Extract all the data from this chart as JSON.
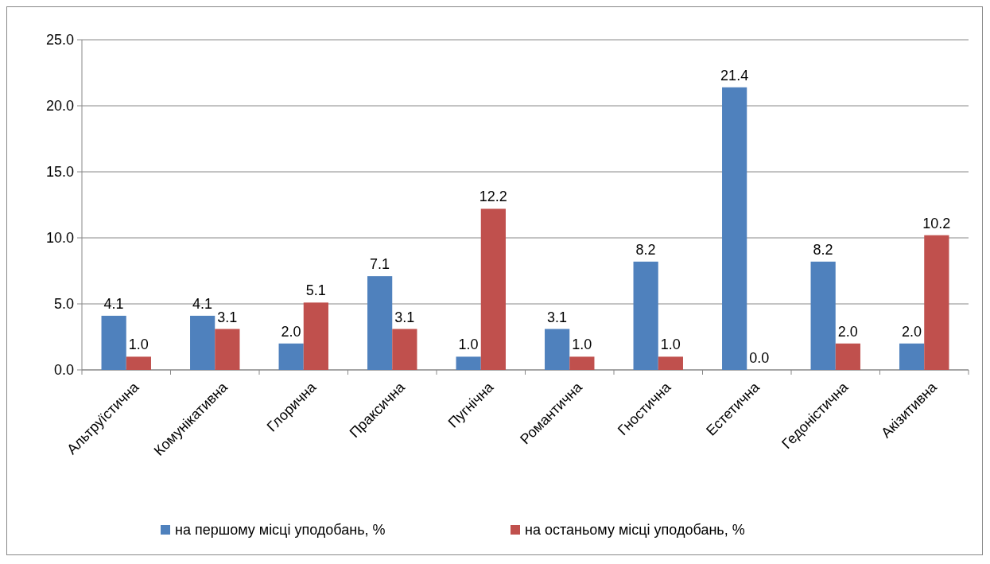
{
  "chart_data": {
    "type": "bar",
    "categories": [
      "Альтруїстична",
      "Комунікативна",
      "Глорична",
      "Праксична",
      "Пугнічна",
      "Романтична",
      "Гностична",
      "Естетична",
      "Гедоністична",
      "Акізитивна"
    ],
    "series": [
      {
        "name": "на першому місці уподобань, %",
        "color": "#4f81bd",
        "values": [
          4.1,
          4.1,
          2.0,
          7.1,
          1.0,
          3.1,
          8.2,
          21.4,
          8.2,
          2.0
        ],
        "value_labels": [
          "4.1",
          "4.1",
          "2.0",
          "7.1",
          "1.0",
          "3.1",
          "8.2",
          "21.4",
          "8.2",
          "2.0"
        ]
      },
      {
        "name": "на останьому місці уподобань, %",
        "color": "#c0504d",
        "values": [
          1.0,
          3.1,
          5.1,
          3.1,
          12.2,
          1.0,
          1.0,
          0.0,
          2.0,
          10.2
        ],
        "value_labels": [
          "1.0",
          "3.1",
          "5.1",
          "3.1",
          "12.2",
          "1.0",
          "1.0",
          "0.0",
          "2.0",
          "10.2"
        ]
      }
    ],
    "ylim": [
      0,
      25
    ],
    "yticks": [
      {
        "value": 0,
        "label": "0.0"
      },
      {
        "value": 5,
        "label": "5.0"
      },
      {
        "value": 10,
        "label": "10.0"
      },
      {
        "value": 15,
        "label": "15.0"
      },
      {
        "value": 20,
        "label": "20.0"
      },
      {
        "value": 25,
        "label": "25.0"
      }
    ],
    "grid": "y",
    "legend": "bottom"
  }
}
